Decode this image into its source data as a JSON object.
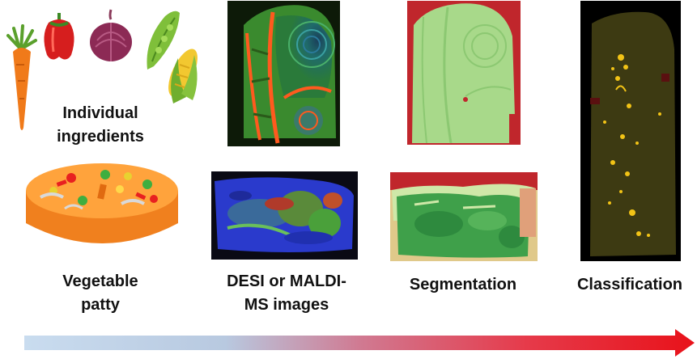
{
  "labels": {
    "ingredients_line1": "Individual",
    "ingredients_line2": "ingredients",
    "patty_line1": "Vegetable",
    "patty_line2": "patty",
    "ms_line1": "DESI or MALDI-",
    "ms_line2": "MS images",
    "segmentation": "Segmentation",
    "classification": "Classification"
  },
  "icons": [
    "carrot-icon",
    "red-pepper-icon",
    "red-onion-icon",
    "pea-pod-icon",
    "corn-icon",
    "vegetable-patty-icon"
  ],
  "colors": {
    "arrow_start": "#c9dcef",
    "arrow_end": "#e8121a",
    "segmentation_red": "#c0262c",
    "segmentation_green": "#a8d98a",
    "classification_olive": "#3d3a12",
    "classification_yellow": "#f2c316"
  }
}
